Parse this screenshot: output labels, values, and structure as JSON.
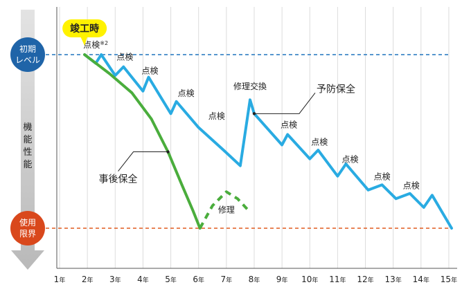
{
  "chart_data": {
    "type": "line",
    "completion_label": "竣工時",
    "y_axis": {
      "label_chars": [
        "機",
        "能",
        "性",
        "能"
      ],
      "top_label_lines": [
        "初期",
        "レベル"
      ],
      "bottom_label_lines": [
        "使用",
        "限界"
      ]
    },
    "x": {
      "categories": [
        "1年",
        "2年",
        "3年",
        "4年",
        "5年",
        "6年",
        "7年",
        "8年",
        "9年",
        "10年",
        "11年",
        "12年",
        "13年",
        "14年",
        "15年"
      ],
      "range": [
        0.9,
        15.3
      ]
    },
    "y": {
      "range": [
        0,
        100
      ],
      "initial_level": 100,
      "service_limit": 0
    },
    "series": [
      {
        "name": "予防保全",
        "color": "#29abe2",
        "points": [
          [
            1.9,
            100
          ],
          [
            2.3,
            95
          ],
          [
            2.5,
            100
          ],
          [
            3.0,
            88
          ],
          [
            3.3,
            93
          ],
          [
            4.0,
            79
          ],
          [
            4.2,
            87
          ],
          [
            5.0,
            66
          ],
          [
            5.2,
            73
          ],
          [
            6.0,
            58
          ],
          [
            6.9,
            45
          ],
          [
            7.5,
            36
          ],
          [
            7.85,
            74
          ],
          [
            8.0,
            66
          ],
          [
            9.0,
            48
          ],
          [
            9.2,
            54
          ],
          [
            10.0,
            40
          ],
          [
            10.3,
            45
          ],
          [
            11.0,
            30
          ],
          [
            11.3,
            37
          ],
          [
            12.1,
            22
          ],
          [
            12.6,
            25
          ],
          [
            13.1,
            17
          ],
          [
            13.6,
            20
          ],
          [
            14.1,
            12
          ],
          [
            14.4,
            19
          ],
          [
            15.1,
            0
          ]
        ]
      },
      {
        "name": "事後保全",
        "color": "#4aad3c",
        "points": [
          [
            1.9,
            100
          ],
          [
            2.8,
            89
          ],
          [
            3.6,
            78
          ],
          [
            4.3,
            63
          ],
          [
            4.9,
            44
          ],
          [
            5.4,
            25
          ],
          [
            5.8,
            10
          ],
          [
            6.05,
            0
          ]
        ]
      },
      {
        "name": "修理",
        "color": "#4aad3c",
        "style": "dashed",
        "points": [
          [
            6.05,
            0
          ],
          [
            6.5,
            13
          ],
          [
            7.0,
            21
          ],
          [
            7.4,
            17
          ],
          [
            7.75,
            11
          ]
        ]
      }
    ],
    "annotations": [
      {
        "text": "点検",
        "note": "※2",
        "x": 2.3,
        "y": 104
      },
      {
        "text": "点検",
        "x": 3.35,
        "y": 97
      },
      {
        "text": "点検",
        "x": 4.25,
        "y": 89
      },
      {
        "text": "点検",
        "x": 5.55,
        "y": 76
      },
      {
        "text": "点検",
        "x": 6.65,
        "y": 63
      },
      {
        "text": "修理交換",
        "x": 7.85,
        "y": 80
      },
      {
        "text": "点検",
        "x": 9.25,
        "y": 58
      },
      {
        "text": "点検",
        "x": 10.35,
        "y": 48
      },
      {
        "text": "点検",
        "x": 11.45,
        "y": 38
      },
      {
        "text": "点検",
        "x": 12.6,
        "y": 28
      },
      {
        "text": "点検",
        "x": 13.65,
        "y": 23
      },
      {
        "text": "修理",
        "x": 7.0,
        "y": 9
      }
    ],
    "callouts": [
      {
        "text": "予防保全",
        "point": [
          8.0,
          66
        ]
      },
      {
        "text": "事後保全",
        "point": [
          4.9,
          44
        ]
      }
    ],
    "colors": {
      "preventive": "#29abe2",
      "reactive": "#4aad3c",
      "initial_level_line": "#1f74bd",
      "limit_line": "#e05a1e",
      "badge_blue": "#1f64a8",
      "badge_red": "#d9481c",
      "completion_badge": "#fff200"
    }
  }
}
